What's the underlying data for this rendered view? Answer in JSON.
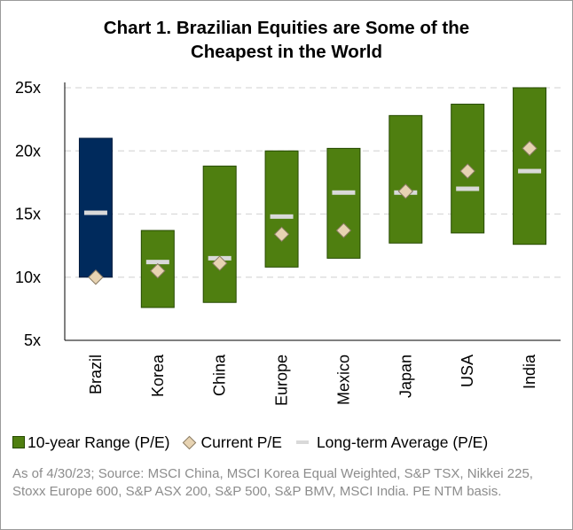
{
  "chart_data": {
    "type": "bar",
    "title_lines": [
      "Chart 1. Brazilian Equities  are Some of the",
      "Cheapest in the World"
    ],
    "categories": [
      "Brazil",
      "Korea",
      "China",
      "Europe",
      "Mexico",
      "Japan",
      "USA",
      "India"
    ],
    "y_ticks": [
      5,
      10,
      15,
      20,
      25
    ],
    "y_tick_labels": [
      "5x",
      "10x",
      "15x",
      "20x",
      "25x"
    ],
    "ylim": [
      5,
      25
    ],
    "grid": true,
    "series": [
      {
        "name": "10-year Range (P/E)",
        "low": [
          10.0,
          7.6,
          8.0,
          10.8,
          11.5,
          12.7,
          13.5,
          12.6
        ],
        "high": [
          21.0,
          13.7,
          18.8,
          20.0,
          20.2,
          22.8,
          23.7,
          25.0
        ]
      },
      {
        "name": "Current P/E",
        "values": [
          10.0,
          10.5,
          11.1,
          13.4,
          13.7,
          16.8,
          18.4,
          20.2
        ]
      },
      {
        "name": "Long-term Average (P/E)",
        "values": [
          15.1,
          11.2,
          11.5,
          14.8,
          16.7,
          16.7,
          17.0,
          18.4
        ]
      }
    ],
    "colors": {
      "highlight_bar": "#002a5c",
      "bar": "#4f7f10",
      "bar_border": "#264a00",
      "diamond": "#e7d3b2",
      "average_line": "#d9d9d9",
      "grid": "#d9d9d9"
    }
  },
  "legend": {
    "range_label": "10-year Range (P/E)",
    "current_label": "Current P/E",
    "average_label": "Long-term Average (P/E)"
  },
  "footnote": "As of 4/30/23; Source: MSCI China, MSCI Korea Equal Weighted, S&P TSX, Nikkei 225, Stoxx Europe 600, S&P ASX 200, S&P 500, S&P BMV, MSCI India. PE NTM basis."
}
